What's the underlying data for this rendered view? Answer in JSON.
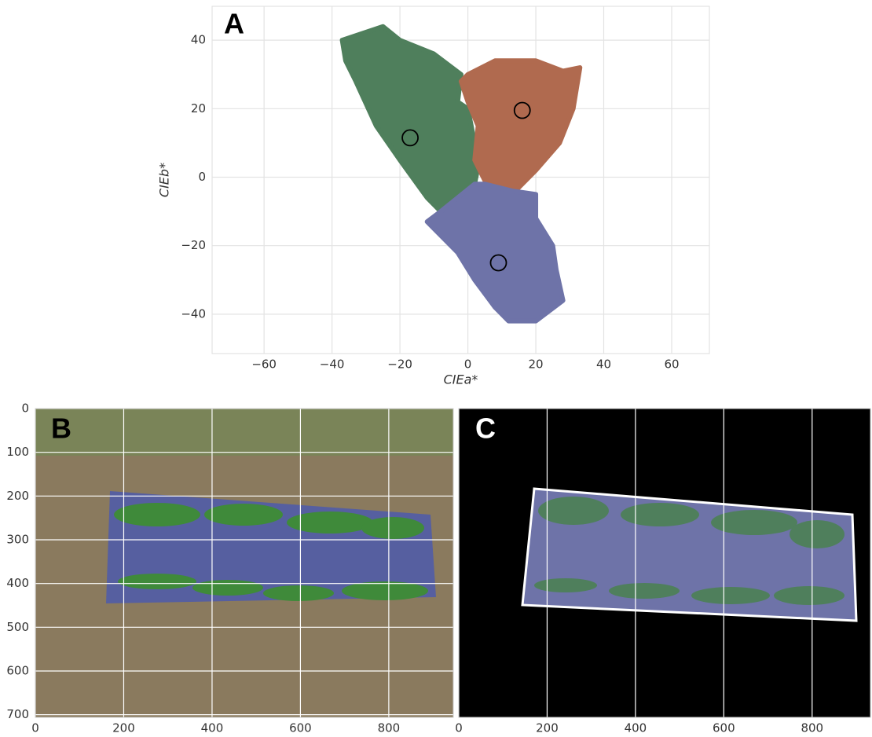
{
  "chart_data": [
    {
      "type": "scatter",
      "panel_label": "A",
      "xlabel": "CIEa*",
      "ylabel": "CIEb*",
      "xlim": [
        -75.3,
        71.1
      ],
      "ylim": [
        -51.5,
        49.9
      ],
      "xticks": [
        {
          "value": -60,
          "label": "−60"
        },
        {
          "value": -40,
          "label": "−40"
        },
        {
          "value": -20,
          "label": "−20"
        },
        0,
        20,
        40,
        60
      ],
      "yticks": [
        {
          "value": -40,
          "label": "−40"
        },
        {
          "value": -20,
          "label": "−20"
        },
        0,
        20,
        40
      ],
      "grid": true,
      "series": [
        {
          "color": "#4f7f5c",
          "x": [
            -37,
            -25,
            -20,
            -10,
            -2,
            -3,
            0,
            2,
            3,
            2,
            -5,
            -8,
            -12,
            -20,
            -27,
            -33,
            -36
          ],
          "y": [
            40,
            44,
            40,
            36,
            30,
            22,
            20,
            10,
            3,
            -2,
            -8,
            -10,
            -6,
            5,
            15,
            28,
            34
          ]
        },
        {
          "color": "#b06a4f",
          "x": [
            0,
            8,
            20,
            28,
            33,
            31,
            27,
            20,
            13,
            5,
            2,
            3,
            0,
            -2
          ],
          "y": [
            30,
            34,
            34,
            31,
            32,
            20,
            10,
            2,
            -5,
            -1,
            5,
            15,
            22,
            28
          ]
        },
        {
          "color": "#6e73a8",
          "x": [
            -8,
            2,
            5,
            13,
            20,
            20,
            25,
            26,
            28,
            20,
            12,
            8,
            2,
            -3,
            -10,
            -12
          ],
          "y": [
            -10,
            -2,
            -2,
            -4,
            -5,
            -12,
            -20,
            -27,
            -36,
            -42,
            -42,
            -38,
            -30,
            -22,
            -15,
            -13
          ]
        }
      ],
      "centroids": {
        "x": [
          -17,
          16,
          9
        ],
        "y": [
          11.5,
          19.5,
          -25
        ]
      }
    },
    {
      "type": "image",
      "panel_label": "B",
      "xlim": [
        0,
        946
      ],
      "ylim": [
        706,
        0
      ],
      "xticks": [
        0,
        200,
        400,
        600,
        800
      ],
      "yticks": [
        0,
        100,
        200,
        300,
        400,
        500,
        600,
        700
      ],
      "grid": true
    },
    {
      "type": "image",
      "panel_label": "C",
      "xlim": [
        0,
        932
      ],
      "ylim": [
        706,
        0
      ],
      "xticks": [
        0,
        200,
        400,
        600,
        800
      ],
      "grid": true
    }
  ]
}
